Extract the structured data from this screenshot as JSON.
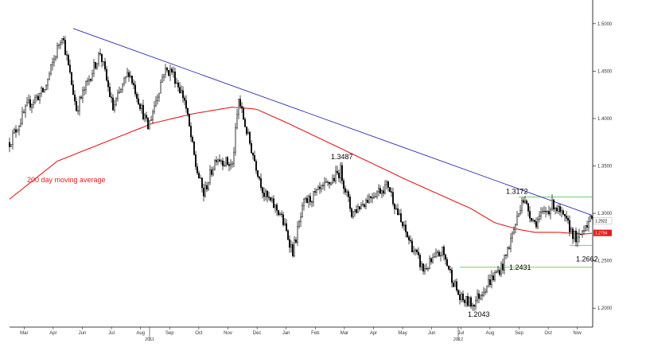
{
  "chart_data": {
    "type": "candlestick",
    "title": "",
    "xlabel": "",
    "ylabel": "",
    "ylim": [
      1.18,
      1.52
    ],
    "y_ticks": [
      "1.2000",
      "1.2500",
      "1.3000",
      "1.3500",
      "1.4000",
      "1.4500",
      "1.5000"
    ],
    "x_ticks": [
      "Mar",
      "Apr",
      "Jun",
      "Jul",
      "Aug",
      "Sep",
      "Oct",
      "Nov",
      "Dec",
      "Jan",
      "Feb",
      "Mar",
      "Apr",
      "May",
      "Jun",
      "Jul",
      "Aug",
      "Sep",
      "Oct",
      "Nov"
    ],
    "years": [
      "2011",
      "2012"
    ],
    "grid": false,
    "series": [
      {
        "name": "",
        "kind": "candles",
        "color": "#000000",
        "anchors": [
          [
            0,
            1.375
          ],
          [
            12,
            1.415
          ],
          [
            22,
            1.43
          ],
          [
            33,
            1.49
          ],
          [
            42,
            1.41
          ],
          [
            57,
            1.47
          ],
          [
            65,
            1.41
          ],
          [
            75,
            1.45
          ],
          [
            87,
            1.39
          ],
          [
            97,
            1.45
          ],
          [
            102,
            1.45
          ],
          [
            110,
            1.42
          ],
          [
            117,
            1.35
          ],
          [
            122,
            1.32
          ],
          [
            130,
            1.36
          ],
          [
            140,
            1.35
          ],
          [
            144,
            1.42
          ],
          [
            150,
            1.38
          ],
          [
            160,
            1.32
          ],
          [
            170,
            1.3
          ],
          [
            178,
            1.26
          ],
          [
            185,
            1.31
          ],
          [
            200,
            1.33
          ],
          [
            208,
            1.345
          ],
          [
            215,
            1.3
          ],
          [
            228,
            1.32
          ],
          [
            238,
            1.33
          ],
          [
            246,
            1.29
          ],
          [
            260,
            1.24
          ],
          [
            272,
            1.26
          ],
          [
            283,
            1.21
          ],
          [
            291,
            1.2043
          ],
          [
            300,
            1.225
          ],
          [
            310,
            1.245
          ],
          [
            320,
            1.3
          ],
          [
            322,
            1.3172
          ],
          [
            330,
            1.29
          ],
          [
            342,
            1.31
          ],
          [
            352,
            1.285
          ],
          [
            357,
            1.27
          ],
          [
            362,
            1.29
          ],
          [
            366,
            1.292
          ]
        ]
      },
      {
        "name": "200 day moving average",
        "kind": "line",
        "color": "#e41a1c",
        "anchors": [
          [
            0,
            1.315
          ],
          [
            30,
            1.355
          ],
          [
            60,
            1.375
          ],
          [
            90,
            1.395
          ],
          [
            115,
            1.405
          ],
          [
            140,
            1.412
          ],
          [
            155,
            1.41
          ],
          [
            175,
            1.395
          ],
          [
            200,
            1.375
          ],
          [
            225,
            1.355
          ],
          [
            250,
            1.335
          ],
          [
            270,
            1.32
          ],
          [
            290,
            1.305
          ],
          [
            305,
            1.29
          ],
          [
            320,
            1.283
          ],
          [
            330,
            1.28
          ],
          [
            345,
            1.28
          ],
          [
            360,
            1.278
          ],
          [
            366,
            1.279
          ]
        ]
      },
      {
        "name": "",
        "kind": "trendline",
        "color": "#2c2cb4",
        "anchors": [
          [
            40,
            1.495
          ],
          [
            366,
            1.298
          ]
        ]
      }
    ],
    "levels": [
      {
        "value": 1.3172,
        "color": "#5cc85c",
        "from": 320
      },
      {
        "value": 1.2431,
        "color": "#5cc85c",
        "from": 283
      },
      {
        "value": 1.2662,
        "color": "#5cc85c",
        "from": 352
      }
    ],
    "annotations": [
      {
        "text": "1.3487",
        "x": 209,
        "y": 1.3487
      },
      {
        "text": "1.3172",
        "x": 320,
        "y": 1.3172
      },
      {
        "text": "1.2431",
        "x": 308,
        "y": 1.2431
      },
      {
        "text": "1.2043",
        "x": 295,
        "y": 1.2043
      },
      {
        "text": "1.2662",
        "x": 358,
        "y": 1.2662
      }
    ],
    "ma_label": "200 day moving average",
    "price_badges": [
      {
        "text": "1.2922",
        "value": 1.2922,
        "fill": "#ffffff",
        "text_color": "#000000"
      },
      {
        "text": "1.2794",
        "value": 1.2794,
        "fill": "#e41a1c",
        "text_color": "#ffffff"
      }
    ]
  }
}
